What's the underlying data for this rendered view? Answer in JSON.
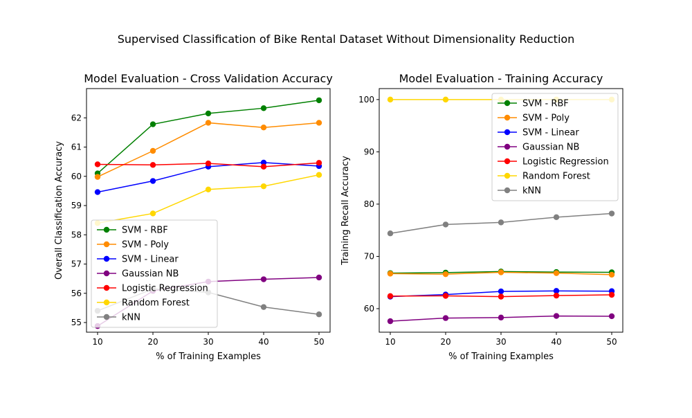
{
  "figure": {
    "suptitle": "Supervised Classification of Bike Rental Dataset Without Dimensionality Reduction"
  },
  "chart_data": [
    {
      "type": "line",
      "title": "Model Evaluation - Cross Validation Accuracy",
      "xlabel": "% of Training Examples",
      "ylabel": "Overall Classification Accuracy",
      "x": [
        10,
        20,
        30,
        40,
        50
      ],
      "xticks": [
        10,
        20,
        30,
        40,
        50
      ],
      "yticks": [
        55,
        56,
        57,
        58,
        59,
        60,
        61,
        62
      ],
      "xlim": [
        8,
        52
      ],
      "ylim": [
        54.67,
        63.0
      ],
      "grid": false,
      "legend_position": "lower-left",
      "series": [
        {
          "name": "SVM - RBF",
          "color": "#008000",
          "values": [
            60.1,
            61.78,
            62.15,
            62.33,
            62.6
          ]
        },
        {
          "name": "SVM - Poly",
          "color": "#ff8c00",
          "values": [
            59.98,
            60.87,
            61.83,
            61.67,
            61.83
          ]
        },
        {
          "name": "SVM - Linear",
          "color": "#0000ff",
          "values": [
            59.46,
            59.84,
            60.33,
            60.47,
            60.35
          ]
        },
        {
          "name": "Gaussian NB",
          "color": "#800080",
          "values": [
            54.88,
            56.08,
            56.4,
            56.48,
            56.54
          ]
        },
        {
          "name": "Logistic Regression",
          "color": "#ff0000",
          "values": [
            60.41,
            60.39,
            60.44,
            60.33,
            60.46
          ]
        },
        {
          "name": "Random Forest",
          "color": "#ffd700",
          "values": [
            58.4,
            58.73,
            59.55,
            59.66,
            60.05
          ]
        },
        {
          "name": "kNN",
          "color": "#808080",
          "values": [
            55.4,
            56.15,
            56.03,
            55.53,
            55.28
          ]
        }
      ]
    },
    {
      "type": "line",
      "title": "Model Evaluation - Training Accuracy",
      "xlabel": "% of Training Examples",
      "ylabel": "Training Recall Accuracy",
      "x": [
        10,
        20,
        30,
        40,
        50
      ],
      "xticks": [
        10,
        20,
        30,
        40,
        50
      ],
      "yticks": [
        60,
        70,
        80,
        90,
        100
      ],
      "xlim": [
        8,
        52
      ],
      "ylim": [
        55.5,
        102.1
      ],
      "grid": false,
      "legend_position": "upper-right",
      "series": [
        {
          "name": "SVM - RBF",
          "color": "#008000",
          "values": [
            66.8,
            66.9,
            67.1,
            67.0,
            66.95
          ]
        },
        {
          "name": "SVM - Poly",
          "color": "#ff8c00",
          "values": [
            66.7,
            66.6,
            66.95,
            66.8,
            66.5
          ]
        },
        {
          "name": "SVM - Linear",
          "color": "#0000ff",
          "values": [
            62.3,
            62.7,
            63.3,
            63.4,
            63.35
          ]
        },
        {
          "name": "Gaussian NB",
          "color": "#800080",
          "values": [
            57.6,
            58.2,
            58.3,
            58.6,
            58.55
          ]
        },
        {
          "name": "Logistic Regression",
          "color": "#ff0000",
          "values": [
            62.4,
            62.45,
            62.3,
            62.5,
            62.65
          ]
        },
        {
          "name": "Random Forest",
          "color": "#ffd700",
          "values": [
            100,
            100,
            100,
            100,
            100
          ]
        },
        {
          "name": "kNN",
          "color": "#808080",
          "values": [
            74.4,
            76.1,
            76.5,
            77.5,
            78.2
          ]
        }
      ]
    }
  ]
}
